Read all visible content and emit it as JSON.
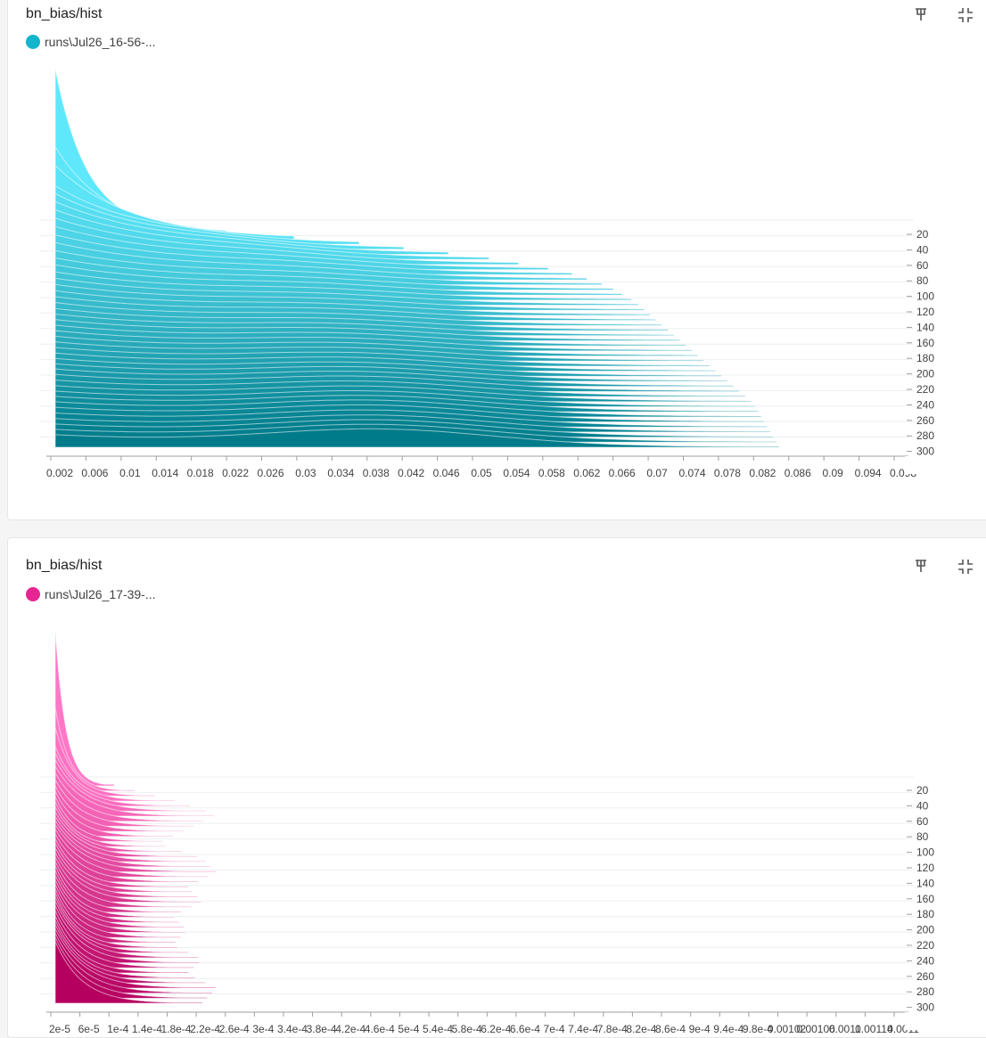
{
  "cards": [
    {
      "title": "bn_bias/hist",
      "run_label": "runs\\Jul26_16-56-...",
      "run_color": "#12b5cb",
      "icons": [
        "pin-icon",
        "collapse-icon"
      ]
    },
    {
      "title": "bn_bias/hist",
      "run_label": "runs\\Jul26_17-39-...",
      "run_color": "#e52592",
      "icons": [
        "pin-icon",
        "collapse-icon"
      ]
    }
  ],
  "chart_data": [
    {
      "type": "histogram-offset",
      "series_name": "runs\\Jul26_16-56-...",
      "color_light": "#5fe8fb",
      "color_dark": "#007b8a",
      "x_ticks": [
        "0.002",
        "0.006",
        "0.01",
        "0.014",
        "0.018",
        "0.022",
        "0.026",
        "0.03",
        "0.034",
        "0.038",
        "0.042",
        "0.046",
        "0.05",
        "0.054",
        "0.058",
        "0.062",
        "0.066",
        "0.07",
        "0.074",
        "0.078",
        "0.082",
        "0.086",
        "0.09",
        "0.094",
        "0.098"
      ],
      "xlim": [
        0.0,
        0.1
      ],
      "y_ticks": [
        "20",
        "40",
        "60",
        "80",
        "100",
        "120",
        "140",
        "160",
        "180",
        "200",
        "220",
        "240",
        "260",
        "280",
        "300"
      ],
      "steps": [
        0,
        20,
        40,
        60,
        80,
        100,
        120,
        140,
        160,
        180,
        200,
        220,
        240,
        260,
        280,
        300
      ],
      "peak_density": [
        1.0,
        0.55,
        0.45,
        0.35,
        0.27,
        0.22,
        0.19,
        0.17,
        0.16,
        0.15,
        0.14,
        0.14,
        0.13,
        0.13,
        0.12,
        0.12
      ],
      "tail_extent": [
        0.012,
        0.035,
        0.05,
        0.06,
        0.065,
        0.068,
        0.07,
        0.072,
        0.074,
        0.076,
        0.078,
        0.08,
        0.082,
        0.083,
        0.084,
        0.085
      ]
    },
    {
      "type": "histogram-offset",
      "series_name": "runs\\Jul26_17-39-...",
      "color_light": "#ff77c6",
      "color_dark": "#b5005f",
      "x_ticks": [
        "2e-5",
        "6e-5",
        "1e-4",
        "1.4e-4",
        "1.8e-4",
        "2.2e-4",
        "2.6e-4",
        "3e-4",
        "3.4e-4",
        "3.8e-4",
        "4.2e-4",
        "4.6e-4",
        "5e-4",
        "5.4e-4",
        "5.8e-4",
        "6.2e-4",
        "6.6e-4",
        "7e-4",
        "7.4e-4",
        "7.8e-4",
        "8.2e-4",
        "8.6e-4",
        "9e-4",
        "9.4e-4",
        "9.8e-4",
        "0.00102",
        "0.00106",
        "0.0011",
        "0.00114",
        "0.0011"
      ],
      "xlim": [
        0.0,
        0.00116
      ],
      "y_ticks": [
        "20",
        "40",
        "60",
        "80",
        "100",
        "120",
        "140",
        "160",
        "180",
        "200",
        "220",
        "240",
        "260",
        "280",
        "300"
      ],
      "steps": [
        0,
        20,
        40,
        60,
        80,
        100,
        120,
        140,
        160,
        180,
        200,
        220,
        240,
        260,
        280,
        300
      ],
      "peak_density": [
        1.0,
        0.5,
        0.42,
        0.35,
        0.32,
        0.3,
        0.3,
        0.29,
        0.28,
        0.28,
        0.27,
        0.27,
        0.27,
        0.26,
        0.26,
        0.26
      ],
      "tail_extent": [
        8e-05,
        0.00016,
        0.00022,
        0.00018,
        0.00014,
        0.0002,
        0.00022,
        0.00018,
        0.0002,
        0.00016,
        0.00018,
        0.00016,
        0.0002,
        0.00018,
        0.00022,
        0.0002
      ]
    }
  ]
}
